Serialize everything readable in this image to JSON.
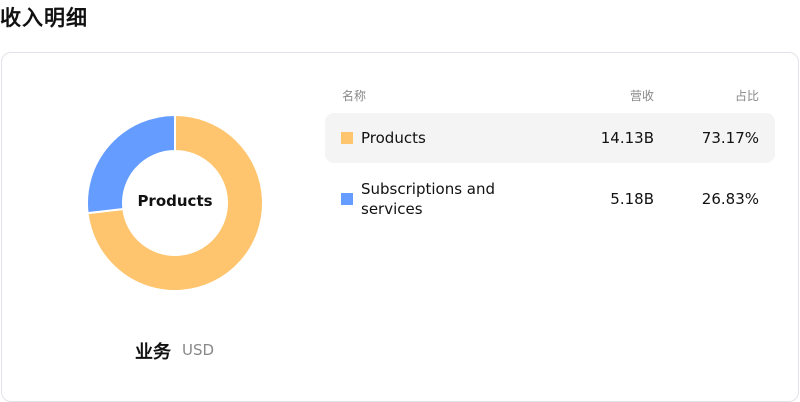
{
  "title": "收入明细",
  "chart_data": {
    "type": "pie",
    "donut": true,
    "center_label": "Products",
    "categories": [
      "Products",
      "Subscriptions and services"
    ],
    "values": [
      73.17,
      26.83
    ],
    "colors": [
      "#ffc46e",
      "#659cff"
    ]
  },
  "footer": {
    "label": "业务",
    "currency": "USD"
  },
  "table": {
    "headers": {
      "name": "名称",
      "revenue": "营收",
      "share": "占比"
    },
    "rows": [
      {
        "name": "Products",
        "revenue": "14.13B",
        "share": "73.17%",
        "color": "#ffc46e"
      },
      {
        "name": "Subscriptions and services",
        "revenue": "5.18B",
        "share": "26.83%",
        "color": "#659cff"
      }
    ]
  }
}
